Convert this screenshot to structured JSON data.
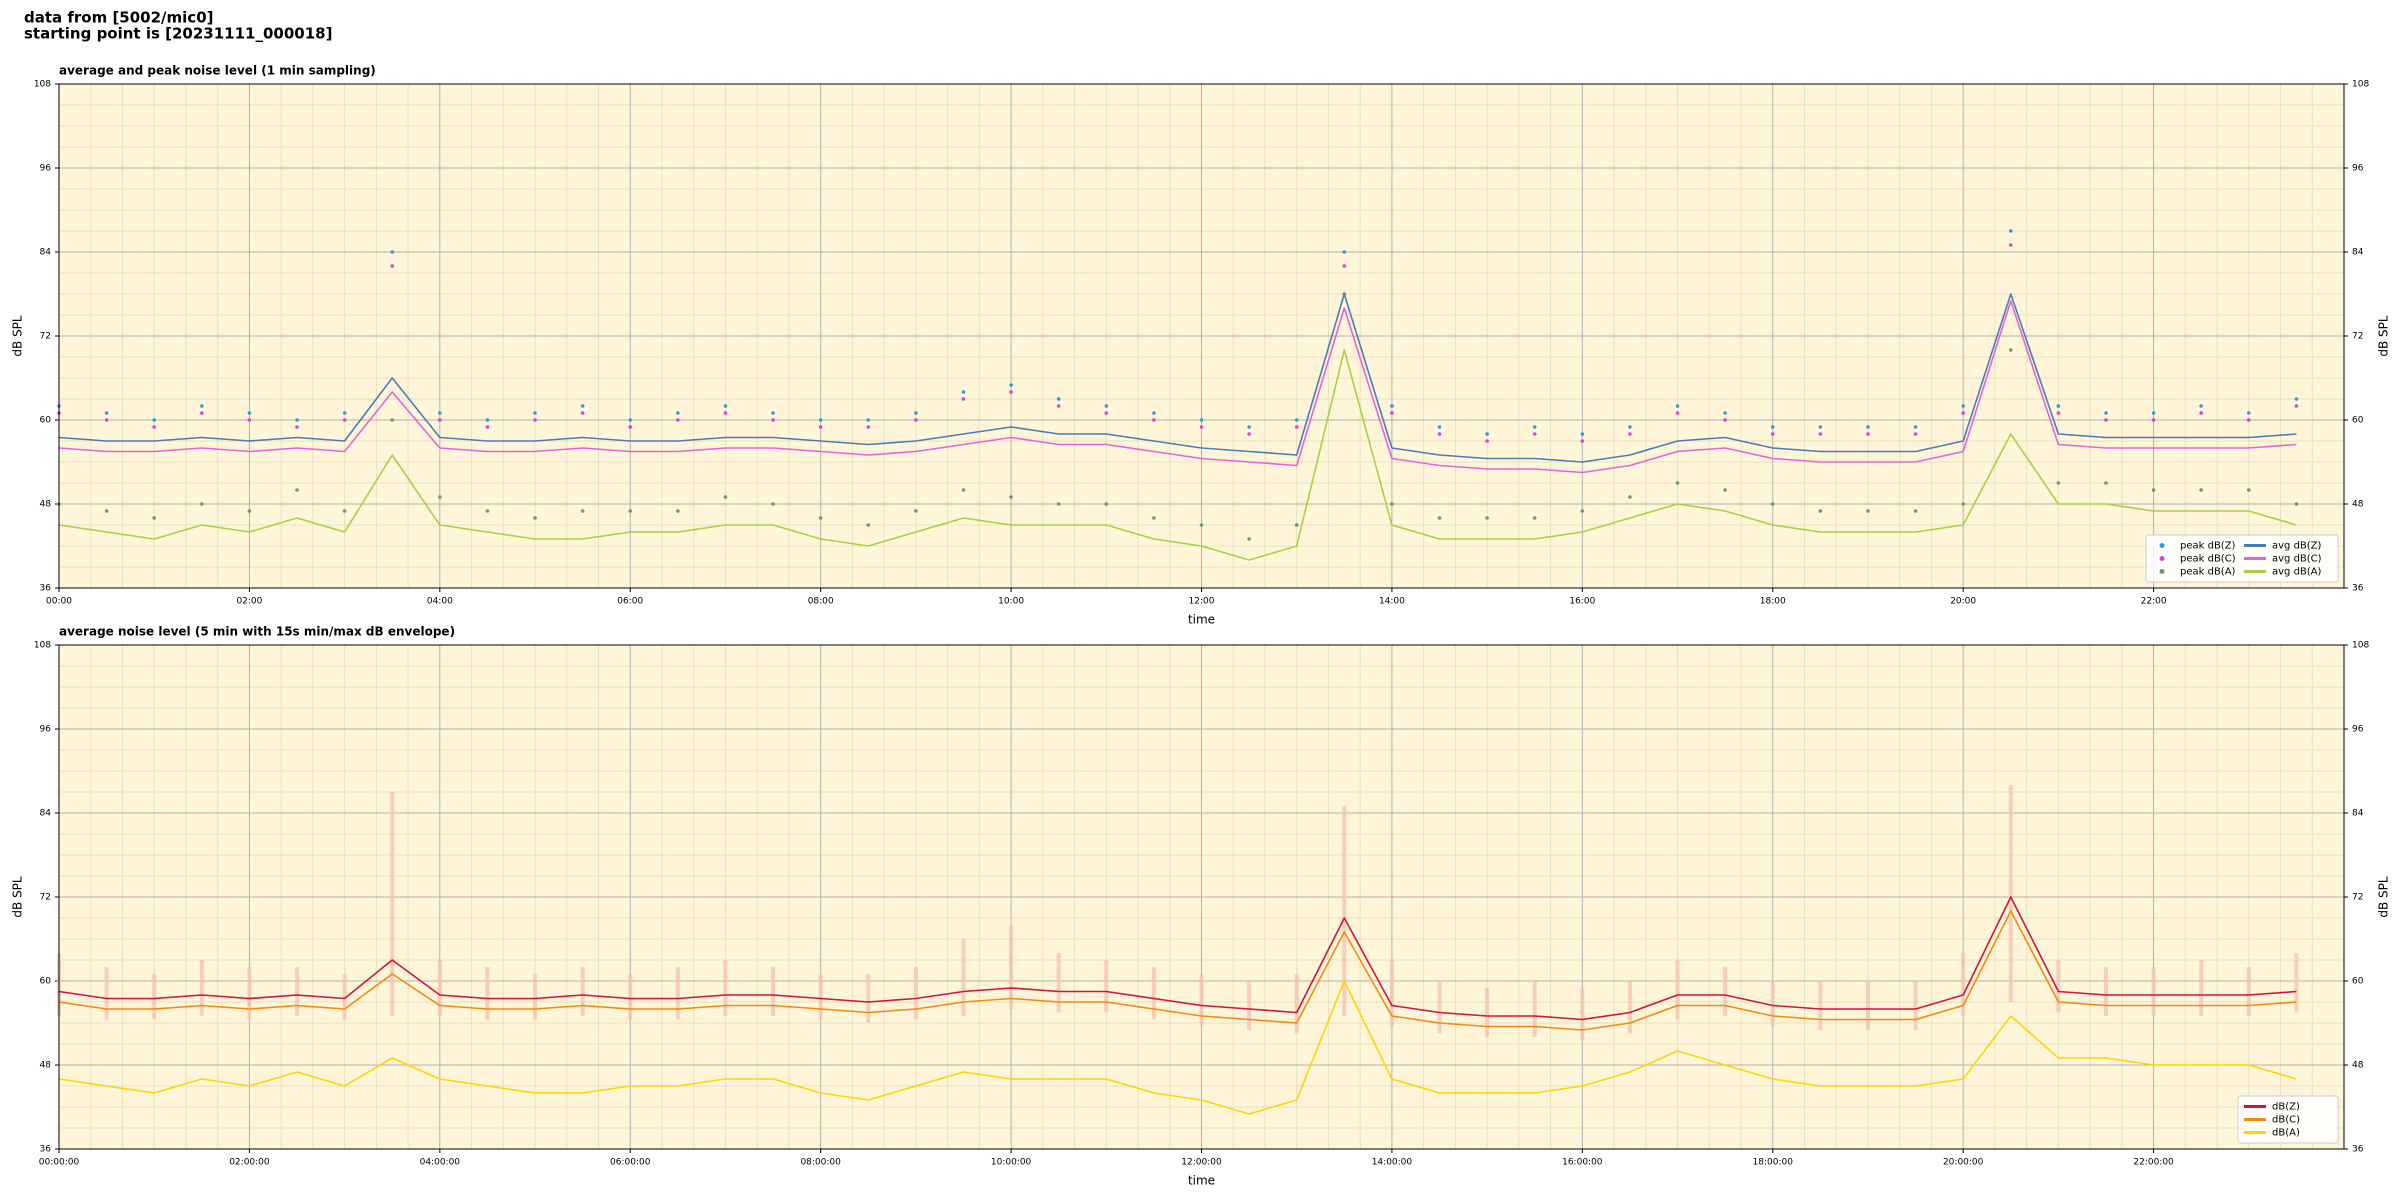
{
  "header": {
    "lines": [
      "data from [5002/mic0]",
      "starting point is [20231111_000018]"
    ]
  },
  "chart_data": [
    {
      "type": "line",
      "title": "average and peak noise level (1 min sampling)",
      "xlabel": "time",
      "ylabel": "dB SPL",
      "background": "#fff6da",
      "grid": true,
      "legend": "lower right",
      "legend_columns": 2,
      "xlim": [
        "00:00",
        "24:00"
      ],
      "xticks": [
        "00:00",
        "02:00",
        "04:00",
        "06:00",
        "08:00",
        "10:00",
        "12:00",
        "14:00",
        "16:00",
        "18:00",
        "20:00",
        "22:00"
      ],
      "ylim": [
        36,
        108
      ],
      "yticks": [
        36,
        48,
        60,
        72,
        84,
        96,
        108
      ],
      "x": [
        "00:00",
        "00:30",
        "01:00",
        "01:30",
        "02:00",
        "02:30",
        "03:00",
        "03:30",
        "04:00",
        "04:30",
        "05:00",
        "05:30",
        "06:00",
        "06:30",
        "07:00",
        "07:30",
        "08:00",
        "08:30",
        "09:00",
        "09:30",
        "10:00",
        "10:30",
        "11:00",
        "11:30",
        "12:00",
        "12:30",
        "13:00",
        "13:30",
        "14:00",
        "14:30",
        "15:00",
        "15:30",
        "16:00",
        "16:30",
        "17:00",
        "17:30",
        "18:00",
        "18:30",
        "19:00",
        "19:30",
        "20:00",
        "20:30",
        "21:00",
        "21:30",
        "22:00",
        "22:30",
        "23:00",
        "23:30"
      ],
      "series": [
        {
          "name": "peak dB(Z)",
          "kind": "points",
          "color": "#2a9fd6",
          "values": [
            62,
            61,
            60,
            62,
            61,
            60,
            61,
            84,
            61,
            60,
            61,
            62,
            60,
            61,
            62,
            61,
            60,
            60,
            61,
            64,
            65,
            63,
            62,
            61,
            60,
            59,
            60,
            84,
            62,
            59,
            58,
            59,
            58,
            59,
            62,
            61,
            59,
            59,
            59,
            59,
            62,
            87,
            62,
            61,
            61,
            62,
            61,
            63
          ]
        },
        {
          "name": "peak dB(C)",
          "kind": "points",
          "color": "#e040d0",
          "values": [
            61,
            60,
            59,
            61,
            60,
            59,
            60,
            82,
            60,
            59,
            60,
            61,
            59,
            60,
            61,
            60,
            59,
            59,
            60,
            63,
            64,
            62,
            61,
            60,
            59,
            58,
            59,
            82,
            61,
            58,
            57,
            58,
            57,
            58,
            61,
            60,
            58,
            58,
            58,
            58,
            61,
            85,
            61,
            60,
            60,
            61,
            60,
            62
          ]
        },
        {
          "name": "peak dB(A)",
          "kind": "points",
          "color": "#6f9a6a",
          "values": [
            48,
            47,
            46,
            48,
            47,
            50,
            47,
            60,
            49,
            47,
            46,
            47,
            47,
            47,
            49,
            48,
            46,
            45,
            47,
            50,
            49,
            48,
            48,
            46,
            45,
            43,
            45,
            78,
            48,
            46,
            46,
            46,
            47,
            49,
            51,
            50,
            48,
            47,
            47,
            47,
            48,
            70,
            51,
            51,
            50,
            50,
            50,
            48
          ]
        },
        {
          "name": "avg dB(Z)",
          "kind": "line",
          "color": "#4a7db5",
          "values": [
            57.5,
            57,
            57,
            57.5,
            57,
            57.5,
            57,
            66,
            57.5,
            57,
            57,
            57.5,
            57,
            57,
            57.5,
            57.5,
            57,
            56.5,
            57,
            58,
            59,
            58,
            58,
            57,
            56,
            55.5,
            55,
            78,
            56,
            55,
            54.5,
            54.5,
            54,
            55,
            57,
            57.5,
            56,
            55.5,
            55.5,
            55.5,
            57,
            78,
            58,
            57.5,
            57.5,
            57.5,
            57.5,
            58
          ]
        },
        {
          "name": "avg dB(C)",
          "kind": "line",
          "color": "#e563d9",
          "values": [
            56,
            55.5,
            55.5,
            56,
            55.5,
            56,
            55.5,
            64,
            56,
            55.5,
            55.5,
            56,
            55.5,
            55.5,
            56,
            56,
            55.5,
            55,
            55.5,
            56.5,
            57.5,
            56.5,
            56.5,
            55.5,
            54.5,
            54,
            53.5,
            76,
            54.5,
            53.5,
            53,
            53,
            52.5,
            53.5,
            55.5,
            56,
            54.5,
            54,
            54,
            54,
            55.5,
            77,
            56.5,
            56,
            56,
            56,
            56,
            56.5
          ]
        },
        {
          "name": "avg dB(A)",
          "kind": "line",
          "color": "#a6d146",
          "values": [
            45,
            44,
            43,
            45,
            44,
            46,
            44,
            55,
            45,
            44,
            43,
            43,
            44,
            44,
            45,
            45,
            43,
            42,
            44,
            46,
            45,
            45,
            45,
            43,
            42,
            40,
            42,
            70,
            45,
            43,
            43,
            43,
            44,
            46,
            48,
            47,
            45,
            44,
            44,
            44,
            45,
            58,
            48,
            48,
            47,
            47,
            47,
            45
          ]
        }
      ]
    },
    {
      "type": "line",
      "title": "average noise level (5 min with 15s min/max dB envelope)",
      "xlabel": "time",
      "ylabel": "dB SPL",
      "background": "#fff6da",
      "grid": true,
      "legend": "lower right",
      "legend_columns": 1,
      "xlim": [
        "00:00:00",
        "24:00:00"
      ],
      "xticks": [
        "00:00:00",
        "02:00:00",
        "04:00:00",
        "06:00:00",
        "08:00:00",
        "10:00:00",
        "12:00:00",
        "14:00:00",
        "16:00:00",
        "18:00:00",
        "20:00:00",
        "22:00:00"
      ],
      "ylim": [
        36,
        108
      ],
      "yticks": [
        36,
        48,
        60,
        72,
        84,
        96,
        108
      ],
      "x": [
        "00:00:00",
        "00:30:00",
        "01:00:00",
        "01:30:00",
        "02:00:00",
        "02:30:00",
        "03:00:00",
        "03:30:00",
        "04:00:00",
        "04:30:00",
        "05:00:00",
        "05:30:00",
        "06:00:00",
        "06:30:00",
        "07:00:00",
        "07:30:00",
        "08:00:00",
        "08:30:00",
        "09:00:00",
        "09:30:00",
        "10:00:00",
        "10:30:00",
        "11:00:00",
        "11:30:00",
        "12:00:00",
        "12:30:00",
        "13:00:00",
        "13:30:00",
        "14:00:00",
        "14:30:00",
        "15:00:00",
        "15:30:00",
        "16:00:00",
        "16:30:00",
        "17:00:00",
        "17:30:00",
        "18:00:00",
        "18:30:00",
        "19:00:00",
        "19:30:00",
        "20:00:00",
        "20:30:00",
        "21:00:00",
        "21:30:00",
        "22:00:00",
        "22:30:00",
        "23:00:00",
        "23:30:00"
      ],
      "envelope": {
        "color": "#f4c4b4",
        "high": [
          64,
          62,
          61,
          63,
          62,
          62,
          61,
          87,
          63,
          62,
          61,
          62,
          61,
          62,
          63,
          62,
          61,
          61,
          62,
          66,
          68,
          64,
          63,
          62,
          61,
          60,
          61,
          85,
          63,
          60,
          59,
          60,
          59,
          60,
          63,
          62,
          60,
          60,
          60,
          60,
          64,
          88,
          63,
          62,
          62,
          63,
          62,
          64
        ],
        "low": [
          55,
          54.5,
          54.5,
          55,
          54.5,
          55,
          54.5,
          55,
          55,
          54.5,
          54.5,
          55,
          54.5,
          54.5,
          55,
          55,
          54.5,
          54,
          54.5,
          55,
          56,
          55.5,
          55.5,
          54.5,
          53.5,
          53,
          52.5,
          55,
          53.5,
          52.5,
          52,
          52,
          51.5,
          52.5,
          54.5,
          55,
          53.5,
          53,
          53,
          53,
          55,
          57,
          55.5,
          55,
          55,
          55,
          55,
          55.5
        ]
      },
      "series": [
        {
          "name": "dB(Z)",
          "kind": "line",
          "color": "#d0143c",
          "values": [
            58.5,
            57.5,
            57.5,
            58,
            57.5,
            58,
            57.5,
            63,
            58,
            57.5,
            57.5,
            58,
            57.5,
            57.5,
            58,
            58,
            57.5,
            57,
            57.5,
            58.5,
            59,
            58.5,
            58.5,
            57.5,
            56.5,
            56,
            55.5,
            69,
            56.5,
            55.5,
            55,
            55,
            54.5,
            55.5,
            58,
            58,
            56.5,
            56,
            56,
            56,
            58,
            72,
            58.5,
            58,
            58,
            58,
            58,
            58.5
          ]
        },
        {
          "name": "dB(C)",
          "kind": "line",
          "color": "#f28a10",
          "values": [
            57,
            56,
            56,
            56.5,
            56,
            56.5,
            56,
            61,
            56.5,
            56,
            56,
            56.5,
            56,
            56,
            56.5,
            56.5,
            56,
            55.5,
            56,
            57,
            57.5,
            57,
            57,
            56,
            55,
            54.5,
            54,
            67,
            55,
            54,
            53.5,
            53.5,
            53,
            54,
            56.5,
            56.5,
            55,
            54.5,
            54.5,
            54.5,
            56.5,
            70,
            57,
            56.5,
            56.5,
            56.5,
            56.5,
            57
          ]
        },
        {
          "name": "dB(A)",
          "kind": "line",
          "color": "#ffd400",
          "values": [
            46,
            45,
            44,
            46,
            45,
            47,
            45,
            49,
            46,
            45,
            44,
            44,
            45,
            45,
            46,
            46,
            44,
            43,
            45,
            47,
            46,
            46,
            46,
            44,
            43,
            41,
            43,
            60,
            46,
            44,
            44,
            44,
            45,
            47,
            50,
            48,
            46,
            45,
            45,
            45,
            46,
            55,
            49,
            49,
            48,
            48,
            48,
            46
          ]
        }
      ]
    }
  ]
}
